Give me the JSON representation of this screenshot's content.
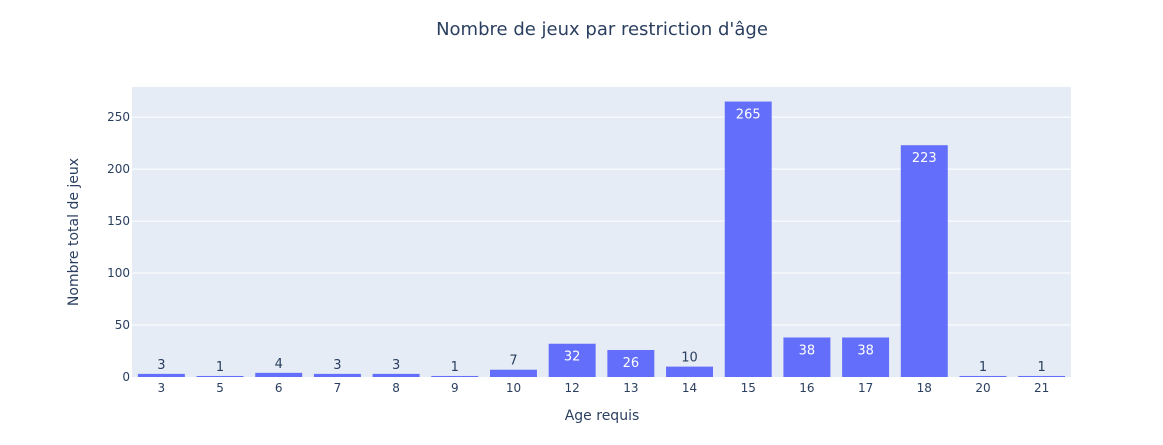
{
  "chart_data": {
    "type": "bar",
    "title": "Nombre de jeux par restriction d'âge",
    "xlabel": "Age requis",
    "ylabel": "Nombre total de jeux",
    "categories": [
      "3",
      "5",
      "6",
      "7",
      "8",
      "9",
      "10",
      "12",
      "13",
      "14",
      "15",
      "16",
      "17",
      "18",
      "20",
      "21"
    ],
    "values": [
      3,
      1,
      4,
      3,
      3,
      1,
      7,
      32,
      26,
      10,
      265,
      38,
      38,
      223,
      1,
      1
    ],
    "yticks": [
      0,
      50,
      100,
      150,
      200,
      250
    ],
    "ylim": [
      0,
      279
    ],
    "grid": true,
    "colors": {
      "bar": "#636efa",
      "plot_bg": "#e5ecf6",
      "grid": "#ffffff",
      "text": "#2a3f5f"
    }
  }
}
